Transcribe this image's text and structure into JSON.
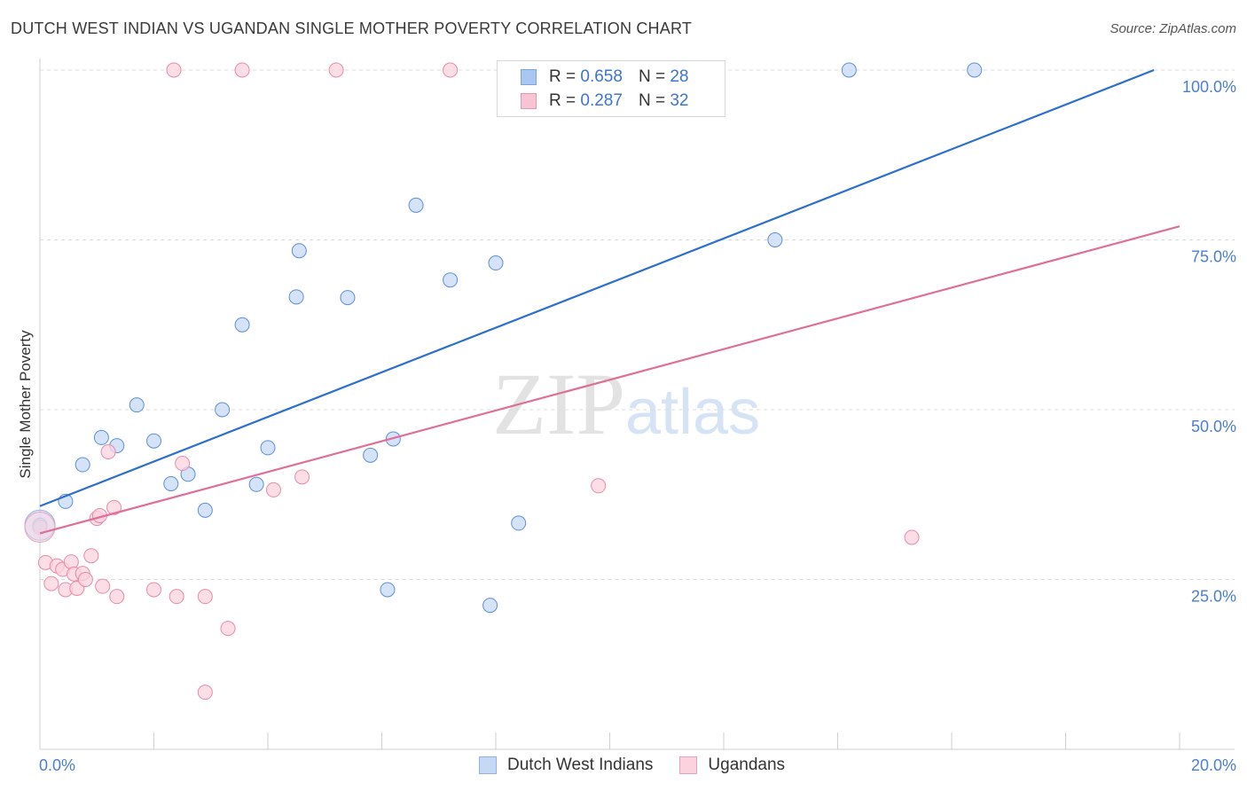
{
  "title": "DUTCH WEST INDIAN VS UGANDAN SINGLE MOTHER POVERTY CORRELATION CHART",
  "source": "Source: ZipAtlas.com",
  "watermark": {
    "zip": "ZIP",
    "atlas": "atlas"
  },
  "legend": {
    "rows": [
      {
        "r_label": "R = ",
        "r_value": "0.658",
        "n_label": "N = ",
        "n_value": "28",
        "color": "#a9c7f0",
        "border": "#7aa6e0"
      },
      {
        "r_label": "R = ",
        "r_value": "0.287",
        "n_label": "N = ",
        "n_value": "32",
        "color": "#f8c4d4",
        "border": "#e896b0"
      }
    ]
  },
  "bottom_legend": [
    {
      "label": "Dutch West Indians",
      "color": "#c5d9f5",
      "border": "#8fb3e6"
    },
    {
      "label": "Ugandans",
      "color": "#fbd3df",
      "border": "#eba0b8"
    }
  ],
  "chart_data": {
    "type": "scatter",
    "ylabel": "Single Mother Poverty",
    "xlabel": "",
    "xlim": [
      0,
      20
    ],
    "ylim": [
      0,
      100
    ],
    "x_tick_labels": [
      {
        "value": 0,
        "label": "0.0%"
      },
      {
        "value": 20,
        "label": "20.0%"
      }
    ],
    "y_tick_labels": [
      {
        "value": 100,
        "label": "100.0%"
      },
      {
        "value": 75,
        "label": "75.0%"
      },
      {
        "value": 50,
        "label": "50.0%"
      },
      {
        "value": 25,
        "label": "25.0%"
      }
    ],
    "series": [
      {
        "name": "Dutch West Indians",
        "color": "#5b8fd8",
        "fill": "#c5d9f5",
        "trend_color": "#2b6fd0",
        "trend": {
          "x0": 0,
          "y0": 35.8,
          "x1": 19.55,
          "y1": 100.0
        },
        "points": [
          [
            0.0,
            33.0
          ],
          [
            0.45,
            36.5
          ],
          [
            0.75,
            41.9
          ],
          [
            1.08,
            45.9
          ],
          [
            1.35,
            44.7
          ],
          [
            1.7,
            50.7
          ],
          [
            2.0,
            45.4
          ],
          [
            2.3,
            39.1
          ],
          [
            2.6,
            40.5
          ],
          [
            2.9,
            35.2
          ],
          [
            3.2,
            50.0
          ],
          [
            3.55,
            62.5
          ],
          [
            3.8,
            39.0
          ],
          [
            4.0,
            44.4
          ],
          [
            4.55,
            73.4
          ],
          [
            4.5,
            66.6
          ],
          [
            5.4,
            66.5
          ],
          [
            5.8,
            43.3
          ],
          [
            6.2,
            45.7
          ],
          [
            6.1,
            23.5
          ],
          [
            6.6,
            80.1
          ],
          [
            7.2,
            69.1
          ],
          [
            7.9,
            21.2
          ],
          [
            8.0,
            71.6
          ],
          [
            8.4,
            33.3
          ],
          [
            12.9,
            75.0
          ],
          [
            14.2,
            100.0
          ],
          [
            16.4,
            100.0
          ]
        ]
      },
      {
        "name": "Ugandans",
        "color": "#e98aa8",
        "fill": "#fbd3df",
        "trend_color": "#e06f97",
        "trend": {
          "x0": 0,
          "y0": 31.8,
          "x1": 20,
          "y1": 77.0
        },
        "points": [
          [
            0.0,
            32.7
          ],
          [
            0.1,
            27.5
          ],
          [
            0.2,
            24.4
          ],
          [
            0.3,
            27.0
          ],
          [
            0.4,
            26.5
          ],
          [
            0.45,
            23.5
          ],
          [
            0.55,
            27.6
          ],
          [
            0.6,
            25.8
          ],
          [
            0.65,
            23.7
          ],
          [
            0.75,
            25.9
          ],
          [
            0.8,
            25.0
          ],
          [
            0.9,
            28.5
          ],
          [
            1.0,
            34.0
          ],
          [
            1.05,
            34.4
          ],
          [
            1.1,
            24.0
          ],
          [
            1.2,
            43.8
          ],
          [
            1.3,
            35.6
          ],
          [
            1.35,
            22.5
          ],
          [
            2.0,
            23.5
          ],
          [
            2.4,
            22.5
          ],
          [
            2.5,
            42.1
          ],
          [
            2.9,
            22.5
          ],
          [
            2.9,
            8.4
          ],
          [
            3.3,
            17.8
          ],
          [
            2.35,
            100.0
          ],
          [
            3.55,
            100.0
          ],
          [
            4.1,
            38.2
          ],
          [
            4.6,
            40.1
          ],
          [
            5.2,
            100.0
          ],
          [
            7.2,
            100.0
          ],
          [
            9.8,
            38.8
          ],
          [
            15.3,
            31.2
          ]
        ]
      }
    ]
  }
}
